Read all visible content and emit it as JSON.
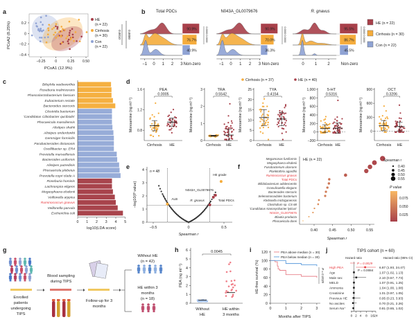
{
  "colors": {
    "HE": "#a8404a",
    "Cirrhosis": "#f5ac3c",
    "Con": "#8fa3d4",
    "highlight": "#e8383d",
    "h_without": "#a8c4ec",
    "h_with": "#f0808a",
    "i_above": "#e8808a",
    "i_below": "#5b9bdc"
  },
  "chart_data": [
    {
      "panel": "a",
      "type": "scatter",
      "xlabel": "PCoA1 (12.9%)",
      "ylabel": "PCoA2 (8.25%)",
      "xticks": [
        "−0.25",
        "0",
        "0.25",
        "0.50"
      ],
      "xtick_values": [
        -0.25,
        0,
        0.25,
        0.5
      ],
      "yticks": [
        "−0.4",
        "−0.2",
        "0",
        "0.2"
      ],
      "ytick_values": [
        -0.4,
        -0.2,
        0,
        0.2
      ],
      "xlim": [
        -0.4,
        0.5
      ],
      "ylim": [
        -0.42,
        0.3
      ],
      "legend": [
        {
          "name": "HE",
          "n": "(n = 22)",
          "center": [
            0.15,
            -0.05
          ],
          "spread": [
            0.1,
            0.12
          ],
          "count": 22
        },
        {
          "name": "Cirrhosis",
          "n": "(n = 30)",
          "center": [
            0.1,
            0.0
          ],
          "spread": [
            0.15,
            0.14
          ],
          "count": 30
        },
        {
          "name": "Con",
          "n": "(n = 22)",
          "center": [
            -0.25,
            0.1
          ],
          "spread": [
            0.07,
            0.11
          ],
          "count": 22
        }
      ],
      "pvalues": [
        "0.0010",
        "0.0000"
      ]
    },
    {
      "panel": "b",
      "type": "area",
      "non_zero_label": "Non-zero",
      "significance": "0.0000 0.0000",
      "subplots": [
        {
          "title": "Total PDCs",
          "italic": false,
          "xticks": [
            "−1",
            "0",
            "1",
            "2",
            "3"
          ],
          "xtick_values": [
            -1,
            0,
            1,
            2,
            3
          ],
          "non_zero_pct": [
            90.9,
            76.7,
            40.9
          ],
          "labels": [
            "90.9%",
            "76.7%",
            "40.9%"
          ]
        },
        {
          "title": "N043A_GL0079676",
          "italic": false,
          "xticks": [
            "−1",
            "0",
            "1",
            "2",
            "3"
          ],
          "xtick_values": [
            -1,
            0,
            1,
            2,
            3
          ],
          "non_zero_pct": [
            90.9,
            70.0,
            36.3
          ],
          "labels": [
            "90.9%",
            "70.0%",
            "36.3%"
          ]
        },
        {
          "title": "R. gnavus",
          "italic": true,
          "xticks": [
            "0",
            "1",
            "2"
          ],
          "xtick_values": [
            0,
            1,
            2
          ],
          "non_zero_pct": [
            95.5,
            86.7,
            45.5
          ],
          "labels": [
            "95.5%",
            "86.7%",
            "45.5%"
          ]
        }
      ],
      "legend": [
        "HE (n = 22)",
        "Cirrhosis (n = 30)",
        "Con (n = 22)"
      ]
    },
    {
      "panel": "c",
      "type": "bar",
      "xlabel": "log10(LDA score)",
      "xticks": [
        "0",
        "1",
        "2",
        "3",
        "4",
        "5"
      ],
      "xlim": [
        0,
        5
      ],
      "categories": [
        "Bilophila wadsworthia",
        "Roseburia inulinivorans",
        "Phascolarctobacterium faecium",
        "Eubacterium rectale",
        "Bacteroides stercoris",
        "Clostridia bacterium",
        "'Candidatus Cibiobacter qucibialis'",
        "Phocaeicola massiliensis",
        "Alistipes shahii",
        "Alistipes onderdonkii",
        "Gemmiger formicilis",
        "Parabacteroides distasonis",
        "Oscillibacter sp. ER4",
        "Prevotella marseillensis",
        "Bacteroides uniformis",
        "Alistipes putredinis",
        "Phocaeicola plebeius",
        "Prevotella copri clade A",
        "Roseburia hominis",
        "Lachnospira eligens",
        "Megasphaera elsdenii",
        "Veillonella atypica",
        "Ruminococcus gnavus",
        "Veillonella parvula",
        "Escherichia coli"
      ],
      "values": [
        3.5,
        3.55,
        3.55,
        3.7,
        3.95,
        3.6,
        3.6,
        3.6,
        3.65,
        3.75,
        3.8,
        3.8,
        3.8,
        4.1,
        4.15,
        4.35,
        4.4,
        4.5,
        3.6,
        3.6,
        3.7,
        3.9,
        4.0,
        4.2,
        4.75
      ],
      "groups": [
        "Cirrhosis",
        "Cirrhosis",
        "Cirrhosis",
        "Cirrhosis",
        "Cirrhosis",
        "Con",
        "Con",
        "Con",
        "Con",
        "Con",
        "Con",
        "Con",
        "Con",
        "Con",
        "Con",
        "Con",
        "Con",
        "Con",
        "HE",
        "HE",
        "HE",
        "HE",
        "HE",
        "HE",
        "HE"
      ],
      "highlighted": [
        "Ruminococcus gnavus"
      ]
    },
    {
      "panel": "d",
      "type": "scatter",
      "ylabel": "Monoamine (ng ml⁻¹)",
      "legend": [
        "Cirrhosis (n = 37)",
        "HE (n = 40)"
      ],
      "categories": [
        "Cirrhosis",
        "HE"
      ],
      "subplots": [
        {
          "title": "PEA",
          "p": "0.0005",
          "ylim": [
            0.6,
            1.6
          ],
          "yticks": [
            "0.8",
            "1.2",
            "1.6"
          ],
          "ytick_values": [
            0.8,
            1.2,
            1.6
          ],
          "zero_line": false,
          "groups": [
            {
              "mean": 0.89,
              "sd": 0.1,
              "n": 37,
              "outliers": [
                1.33
              ]
            },
            {
              "mean": 0.96,
              "sd": 0.08,
              "n": 40,
              "outliers": []
            }
          ]
        },
        {
          "title": "TRA",
          "p": "0.5542",
          "ylim": [
            0,
            3
          ],
          "yticks": [
            "0",
            "1",
            "2",
            "3"
          ],
          "ytick_values": [
            0,
            1,
            2,
            3
          ],
          "zero_line": false,
          "groups": [
            {
              "mean": 0.28,
              "sd": 0.03,
              "n": 37,
              "outliers": []
            },
            {
              "mean": 0.32,
              "sd": 0.35,
              "n": 40,
              "outliers": [
                2.15,
                1.05
              ]
            }
          ]
        },
        {
          "title": "TYA",
          "p": "0.4154",
          "ylim": [
            0,
            25
          ],
          "yticks": [
            "0",
            "5",
            "10",
            "15",
            "20",
            "25"
          ],
          "ytick_values": [
            0,
            5,
            10,
            15,
            20,
            25
          ],
          "zero_line": false,
          "groups": [
            {
              "mean": 11.2,
              "sd": 3.9,
              "n": 37,
              "outliers": [
                20.3,
                3.6
              ]
            },
            {
              "mean": 10.5,
              "sd": 3.3,
              "n": 40,
              "outliers": []
            }
          ]
        },
        {
          "title": "5-HT",
          "p": "0.5316",
          "ylim": [
            -200,
            1000
          ],
          "yticks": [
            "−200",
            "0",
            "200",
            "400",
            "600",
            "800",
            "1,000"
          ],
          "ytick_values": [
            -200,
            0,
            200,
            400,
            600,
            800,
            1000
          ],
          "zero_line": true,
          "groups": [
            {
              "mean": 80,
              "sd": 90,
              "n": 37,
              "outliers": [
                360
              ]
            },
            {
              "mean": 90,
              "sd": 120,
              "n": 40,
              "outliers": [
                740,
                350
              ]
            }
          ]
        },
        {
          "title": "OCT",
          "p": "0.3206",
          "ylim": [
            -200,
            900
          ],
          "yticks": [
            "0",
            "300",
            "600",
            "900"
          ],
          "ytick_values": [
            0,
            300,
            600,
            900
          ],
          "zero_line": true,
          "groups": [
            {
              "mean": 120,
              "sd": 110,
              "n": 37,
              "outliers": [
                540
              ]
            },
            {
              "mean": 100,
              "sd": 95,
              "n": 40,
              "outliers": [
                560,
                390
              ]
            }
          ]
        }
      ]
    },
    {
      "panel": "e",
      "type": "scatter",
      "n_label": "n = 48",
      "xlabel": "Spearman r",
      "ylabel": "−log10(P value)",
      "xticks": [
        "−0.5",
        "0",
        "0.5"
      ],
      "xtick_values": [
        -0.5,
        0,
        0.5
      ],
      "yticks": [
        "0",
        "1",
        "2",
        "3",
        "4"
      ],
      "ylim": [
        0,
        4
      ],
      "xlim": [
        -0.65,
        0.6
      ],
      "thresholds": {
        "r": 0.3,
        "neg_log_p": 1.3
      },
      "r_range": [
        -0.42,
        0.38
      ],
      "n": 48,
      "labeled_points": [
        {
          "label": "HE grade",
          "r": 0.46,
          "y": 3.1,
          "color": "#f5ac3c"
        },
        {
          "label": "ALB",
          "r": -0.3,
          "y": 1.38,
          "color": "#f5ac3c"
        },
        {
          "label": "N043A_GL0079676",
          "r": 0.35,
          "y": 1.9,
          "color": "#a8404a"
        },
        {
          "label": "Total PDCs",
          "r": 0.38,
          "y": 2.05,
          "color": "#a8404a"
        },
        {
          "label": "R. gnavus",
          "r": 0.3,
          "y": 1.32,
          "color": "#a8404a"
        }
      ]
    },
    {
      "panel": "f",
      "type": "scatter",
      "title": "HE (n = 22)",
      "xlabel": "Spearman r",
      "xticks": [
        "0.40",
        "0.45",
        "0.50",
        "0.55"
      ],
      "xtick_values": [
        0.4,
        0.45,
        0.5,
        0.55
      ],
      "categories": [
        "Megamonas funiformis",
        "Megasphaera elsdenii",
        "Fusobacterium ulcerans",
        "Planktothrix agardhii",
        "Ruminococcus gnavus",
        "Total PDCs",
        "Bifidobacterium adolescentis",
        "Granulicatella elegans",
        "Bacteroides stercoris",
        "Selenomonadales bacterium",
        "Klebsiella michiganensis",
        "Clostridium sp. CS 68",
        "'Candidatus Nanosynbacter lyticus'",
        "N043A_GL0079676",
        "Blautia producta",
        "Phocaeicola dorei"
      ],
      "italic": [
        true,
        true,
        true,
        true,
        true,
        false,
        true,
        true,
        true,
        true,
        true,
        true,
        true,
        false,
        true,
        true
      ],
      "highlighted": [
        "Ruminococcus gnavus",
        "Total PDCs",
        "N043A_GL0079676"
      ],
      "r": [
        0.585,
        0.563,
        0.551,
        0.541,
        0.485,
        0.441,
        0.44,
        0.436,
        0.432,
        0.43,
        0.413,
        0.411,
        0.401,
        0.397,
        0.386,
        0.37
      ],
      "p": [
        0.004,
        0.006,
        0.008,
        0.009,
        0.022,
        0.04,
        0.041,
        0.043,
        0.045,
        0.046,
        0.056,
        0.058,
        0.064,
        0.067,
        0.076,
        0.09
      ],
      "size_legend": {
        "title": "Spearman r",
        "values": [
          "0.40",
          "0.45",
          "0.50",
          "0.55"
        ]
      },
      "color_legend": {
        "title": "P value",
        "ticks": [
          "0.075",
          "0.050",
          "0.025"
        ]
      }
    },
    {
      "panel": "h",
      "type": "scatter",
      "ylabel": "PEA (ng ml⁻¹)",
      "yticks": [
        "0",
        "1",
        "2",
        "3",
        "4",
        "5",
        "6"
      ],
      "ylim": [
        0,
        6
      ],
      "categories": [
        [
          "Without",
          "HE"
        ],
        [
          "HE within",
          "3 months"
        ]
      ],
      "p": "0.0045",
      "groups": [
        {
          "mean": 0.35,
          "sd": 0.15,
          "n": 42
        },
        {
          "mean": 1.2,
          "sd": 1.1,
          "n": 18,
          "outliers": [
            4.6,
            4.4,
            3.6,
            1.9
          ]
        }
      ]
    },
    {
      "panel": "i",
      "type": "line",
      "xlabel": "Months after TIPS",
      "ylabel": "HE-free survival (%)",
      "xticks": [
        "0",
        "1",
        "2",
        "3"
      ],
      "yticks": [
        "0",
        "20",
        "40",
        "60",
        "80",
        "100",
        "120"
      ],
      "ylim": [
        0,
        120
      ],
      "xlim": [
        0,
        3.1
      ],
      "p": "P = 0.0029",
      "series": [
        {
          "name": "PEA above median (n = 30)",
          "x": [
            0,
            0.3,
            0.45,
            0.5,
            0.6,
            1.0,
            1.0,
            2.0,
            3.0
          ],
          "y": [
            100,
            97,
            87,
            80,
            77,
            70,
            67,
            63,
            60
          ]
        },
        {
          "name": "PEA below median (n = 30)",
          "x": [
            0,
            0.3,
            1.0,
            1.0,
            2.0,
            3.0
          ],
          "y": [
            100,
            100,
            100,
            93,
            90,
            87
          ]
        }
      ]
    },
    {
      "panel": "j",
      "type": "table",
      "title": "TIPS cohort (n = 60)",
      "col_headers": [
        "Hazard ratio",
        "Hazard ratio (95% CI)"
      ],
      "xticks": [
        "0",
        "2",
        "4",
        "8",
        "16",
        "24"
      ],
      "xtick_values": [
        0,
        2,
        4,
        8,
        16,
        24
      ],
      "p_labels": [
        "P = 0.0029",
        "P = 0.0084"
      ],
      "rows": [
        {
          "label": "High PEA",
          "hr": 6.87,
          "lo": 1.93,
          "hi": 24.47,
          "text": "6.87 (1.93, 24.47)",
          "highlight": true
        },
        {
          "label": "Age",
          "hr": 1.07,
          "lo": 1.02,
          "hi": 1.13,
          "text": "1.07 (1.02, 1.13)",
          "highlight": false
        },
        {
          "label": "Male sex",
          "hr": 2.1,
          "lo": 0.57,
          "hi": 7.73,
          "text": "2.10 (0.57, 7.73)",
          "highlight": false
        },
        {
          "label": "MELD",
          "hr": 1.07,
          "lo": 0.91,
          "hi": 1.25,
          "text": "1.07 (0.91, 1.25)",
          "highlight": false
        },
        {
          "label": "Ammonia",
          "hr": 1.04,
          "lo": 1.0,
          "hi": 1.08,
          "text": "1.04 (1.00, 1.08)",
          "highlight": false
        },
        {
          "label": "Creatinine",
          "hr": 1.01,
          "lo": 0.97,
          "hi": 1.05,
          "text": "1.01 (0.97, 1.05)",
          "highlight": false
        },
        {
          "label": "Previous HE",
          "hr": 0.95,
          "lo": 0.23,
          "hi": 3.93,
          "text": "0.95 (0.23, 3.93)",
          "highlight": false
        },
        {
          "label": "No ascites",
          "hr": 0.7,
          "lo": 0.21,
          "hi": 2.26,
          "text": "0.70 (0.21, 2.26)",
          "highlight": false
        },
        {
          "label": "Serum Na⁺",
          "hr": 0.81,
          "lo": 0.65,
          "hi": 1.02,
          "text": "0.81 (0.65, 1.02)",
          "highlight": false
        }
      ]
    }
  ],
  "panel_g": {
    "enrolled": [
      "Enrolled",
      "patients",
      "undergoing",
      "TIPS"
    ],
    "blood": [
      "Blood sampling",
      "during TIPS"
    ],
    "followup": [
      "Follow-up for 3",
      "months"
    ],
    "without": [
      "Without HE",
      "(n = 42)"
    ],
    "within": [
      "HE within 3",
      "months",
      "(n = 18)"
    ]
  },
  "panel_letters": [
    "a",
    "b",
    "c",
    "d",
    "e",
    "f",
    "g",
    "h",
    "i",
    "j"
  ]
}
